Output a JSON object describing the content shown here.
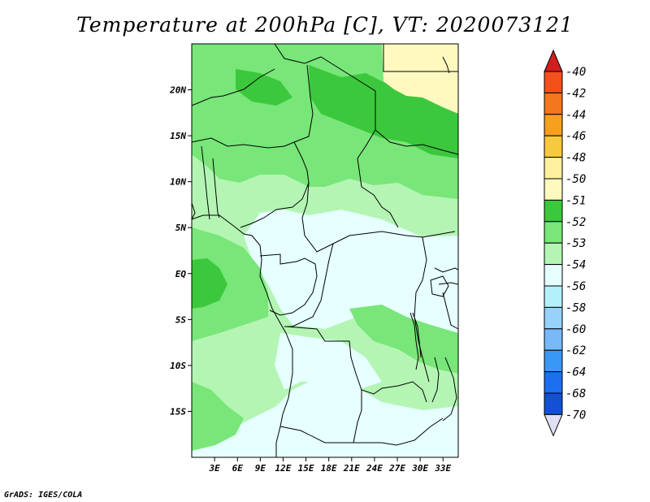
{
  "title": "Temperature at 200hPa [C], VT: 2020073121",
  "credit": "GrADS: IGES/COLA",
  "map": {
    "variable": "Temperature",
    "level": "200hPa",
    "units": "C",
    "valid_time": "2020073121",
    "lat_range": [
      -20,
      25
    ],
    "lon_range": [
      0,
      35
    ],
    "lat_ticks": [
      {
        "value": 20,
        "label": "20N"
      },
      {
        "value": 15,
        "label": "15N"
      },
      {
        "value": 10,
        "label": "10N"
      },
      {
        "value": 5,
        "label": "5N"
      },
      {
        "value": 0,
        "label": "EQ"
      },
      {
        "value": -5,
        "label": "5S"
      },
      {
        "value": -10,
        "label": "10S"
      },
      {
        "value": -15,
        "label": "15S"
      }
    ],
    "lon_ticks": [
      {
        "value": 3,
        "label": "3E"
      },
      {
        "value": 6,
        "label": "6E"
      },
      {
        "value": 9,
        "label": "9E"
      },
      {
        "value": 12,
        "label": "12E"
      },
      {
        "value": 15,
        "label": "15E"
      },
      {
        "value": 18,
        "label": "18E"
      },
      {
        "value": 21,
        "label": "21E"
      },
      {
        "value": 24,
        "label": "24E"
      },
      {
        "value": 27,
        "label": "27E"
      },
      {
        "value": 30,
        "label": "30E"
      },
      {
        "value": 33,
        "label": "33E"
      }
    ]
  },
  "colorbar": {
    "levels": [
      {
        "label": "-40",
        "color": "#e6231e"
      },
      {
        "label": "-42",
        "color": "#f4501e"
      },
      {
        "label": "-44",
        "color": "#f4761e"
      },
      {
        "label": "-46",
        "color": "#f6a01e"
      },
      {
        "label": "-48",
        "color": "#f8c83e"
      },
      {
        "label": "-50",
        "color": "#fff0a0"
      },
      {
        "label": "-51",
        "color": "#fff9c0"
      },
      {
        "label": "-52",
        "color": "#3cc83c"
      },
      {
        "label": "-53",
        "color": "#78e678"
      },
      {
        "label": "-54",
        "color": "#b4f5b4"
      },
      {
        "label": "-56",
        "color": "#e6ffff"
      },
      {
        "label": "-58",
        "color": "#b4f0fa"
      },
      {
        "label": "-60",
        "color": "#96d2fa"
      },
      {
        "label": "-62",
        "color": "#78b9fa"
      },
      {
        "label": "-64",
        "color": "#3c96f5"
      },
      {
        "label": "-68",
        "color": "#1e6ef0"
      },
      {
        "label": "-70",
        "color": "#1450d2"
      }
    ],
    "top_color": "#d21e1e",
    "bottom_cap_color": "#0a1478",
    "bottom_tip_color": "#e0e0f5"
  },
  "regions": [
    {
      "name": "yellow-north",
      "color": "#fff9c0"
    },
    {
      "name": "green-52",
      "color": "#3cc83c"
    },
    {
      "name": "green-53",
      "color": "#78e678"
    },
    {
      "name": "green-54",
      "color": "#b4f5b4"
    },
    {
      "name": "cyan-56",
      "color": "#e6ffff"
    }
  ]
}
